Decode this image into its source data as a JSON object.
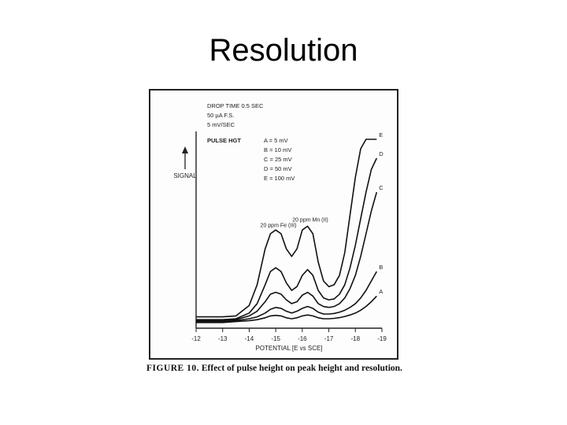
{
  "slide": {
    "title": "Resolution"
  },
  "figure": {
    "caption_label": "FIGURE 10.",
    "caption_text": "Effect of pulse height on peak height and resolution."
  },
  "chart_data": {
    "type": "line",
    "title": "",
    "xlabel": "POTENTIAL [E vs SCE]",
    "ylabel": "SIGNAL",
    "xlim": [
      -1.2,
      -1.9
    ],
    "x_ticks": [
      -1.2,
      -1.3,
      -1.4,
      -1.5,
      -1.6,
      -1.7,
      -1.8,
      -1.9
    ],
    "x_tick_labels": [
      "-12",
      "-13",
      "-14",
      "-15",
      "-16",
      "-17",
      "-18",
      "-19"
    ],
    "ylim": [
      0,
      1
    ],
    "grid": false,
    "conditions": [
      "DROP TIME 0.5 SEC",
      "50 µA F.S.",
      "5 mV/SEC"
    ],
    "legend_title": "PULSE HGT",
    "legend_entries": [
      "A = 5 mV",
      "B = 10 mV",
      "C = 25 mV",
      "D = 50 mV",
      "E = 100 mV"
    ],
    "annotations": [
      {
        "text": "20 ppm Fe (III)",
        "x": -1.51,
        "y": 0.535
      },
      {
        "text": "20 ppm Mn (II)",
        "x": -1.63,
        "y": 0.565
      }
    ],
    "x": [
      -1.2,
      -1.25,
      -1.3,
      -1.35,
      -1.4,
      -1.43,
      -1.46,
      -1.48,
      -1.5,
      -1.52,
      -1.54,
      -1.56,
      -1.58,
      -1.6,
      -1.62,
      -1.64,
      -1.66,
      -1.68,
      -1.7,
      -1.72,
      -1.74,
      -1.76,
      -1.78,
      -1.8,
      -1.82,
      -1.84,
      -1.86,
      -1.88
    ],
    "series": [
      {
        "name": "A",
        "values": [
          0.03,
          0.03,
          0.03,
          0.035,
          0.04,
          0.045,
          0.055,
          0.065,
          0.068,
          0.065,
          0.055,
          0.05,
          0.055,
          0.065,
          0.07,
          0.065,
          0.055,
          0.05,
          0.05,
          0.052,
          0.056,
          0.062,
          0.07,
          0.08,
          0.095,
          0.115,
          0.14,
          0.17
        ]
      },
      {
        "name": "B",
        "values": [
          0.035,
          0.035,
          0.035,
          0.04,
          0.05,
          0.06,
          0.08,
          0.1,
          0.11,
          0.105,
          0.09,
          0.08,
          0.09,
          0.105,
          0.115,
          0.105,
          0.085,
          0.075,
          0.075,
          0.078,
          0.085,
          0.095,
          0.11,
          0.13,
          0.16,
          0.2,
          0.25,
          0.3
        ]
      },
      {
        "name": "C",
        "values": [
          0.04,
          0.04,
          0.04,
          0.045,
          0.065,
          0.09,
          0.14,
          0.18,
          0.19,
          0.18,
          0.15,
          0.13,
          0.14,
          0.175,
          0.19,
          0.17,
          0.13,
          0.115,
          0.11,
          0.115,
          0.13,
          0.16,
          0.21,
          0.28,
          0.38,
          0.5,
          0.62,
          0.72
        ]
      },
      {
        "name": "D",
        "values": [
          0.045,
          0.045,
          0.045,
          0.05,
          0.08,
          0.13,
          0.23,
          0.3,
          0.32,
          0.3,
          0.24,
          0.2,
          0.22,
          0.28,
          0.31,
          0.28,
          0.2,
          0.16,
          0.15,
          0.155,
          0.18,
          0.23,
          0.32,
          0.44,
          0.58,
          0.72,
          0.84,
          0.9
        ]
      },
      {
        "name": "E",
        "values": [
          0.06,
          0.06,
          0.06,
          0.065,
          0.12,
          0.23,
          0.42,
          0.5,
          0.52,
          0.5,
          0.42,
          0.38,
          0.42,
          0.52,
          0.54,
          0.5,
          0.35,
          0.25,
          0.22,
          0.23,
          0.28,
          0.4,
          0.6,
          0.8,
          0.95,
          1.0,
          1.0,
          1.0
        ]
      }
    ]
  }
}
